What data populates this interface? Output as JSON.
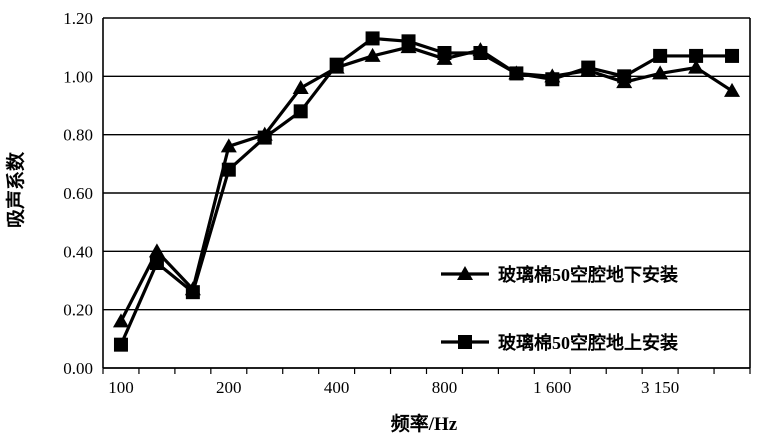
{
  "chart_data": {
    "type": "line",
    "title": "",
    "xlabel": "频率/Hz",
    "ylabel": "吸声系数",
    "ylim": [
      0,
      1.2
    ],
    "yticks": [
      "0.00",
      "0.20",
      "0.40",
      "0.60",
      "0.80",
      "1.00",
      "1.20"
    ],
    "x_tick_labels": [
      {
        "index": 0,
        "label": "100"
      },
      {
        "index": 3,
        "label": "200"
      },
      {
        "index": 6,
        "label": "400"
      },
      {
        "index": 9,
        "label": "800"
      },
      {
        "index": 12,
        "label": "1 600"
      },
      {
        "index": 15,
        "label": "3 150"
      }
    ],
    "x_count": 18,
    "grid": "horizontal",
    "legend_position": "bottom-right",
    "colors": {
      "line": "#000000",
      "grid": "#000000"
    },
    "series": [
      {
        "name": "玻璃棉50空腔地下安装",
        "marker": "triangle",
        "values": [
          0.16,
          0.4,
          0.27,
          0.76,
          0.8,
          0.96,
          1.03,
          1.07,
          1.1,
          1.06,
          1.09,
          1.01,
          1.0,
          1.02,
          0.98,
          1.01,
          1.03,
          0.95
        ]
      },
      {
        "name": "玻璃棉50空腔地上安装",
        "marker": "square",
        "values": [
          0.08,
          0.36,
          0.26,
          0.68,
          0.79,
          0.88,
          1.04,
          1.13,
          1.12,
          1.08,
          1.08,
          1.01,
          0.99,
          1.03,
          1.0,
          1.07,
          1.07,
          1.07
        ]
      }
    ]
  }
}
